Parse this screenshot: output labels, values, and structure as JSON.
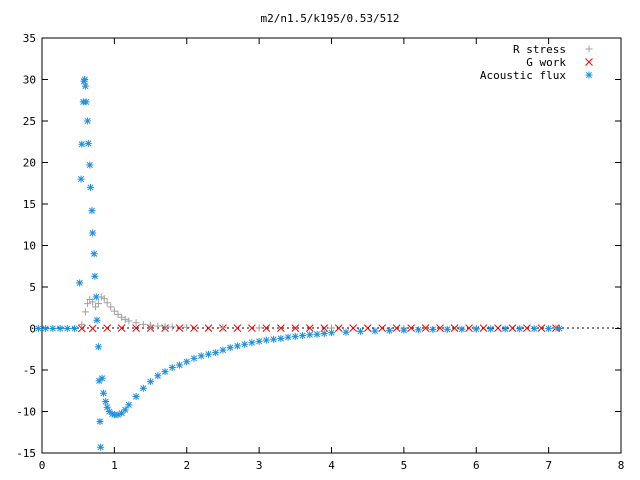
{
  "chart_data": {
    "type": "scatter",
    "title": "m2/n1.5/k195/0.53/512",
    "xlabel": "",
    "ylabel": "",
    "xlim": [
      0,
      8
    ],
    "ylim": [
      -15,
      35
    ],
    "xticks": [
      "0",
      "1",
      "2",
      "3",
      "4",
      "5",
      "6",
      "7",
      "8"
    ],
    "yticks": [
      "-15",
      "-10",
      "-5",
      "0",
      "5",
      "10",
      "15",
      "20",
      "25",
      "30",
      "35"
    ],
    "grid": false,
    "legend_position": "top-right",
    "series": [
      {
        "name": "R stress",
        "marker": "plus",
        "color": "#a0a0a0",
        "points": [
          [
            0.55,
            0.5
          ],
          [
            0.6,
            2.0
          ],
          [
            0.63,
            3.0
          ],
          [
            0.66,
            3.5
          ],
          [
            0.7,
            3.2
          ],
          [
            0.74,
            2.6
          ],
          [
            0.78,
            3.0
          ],
          [
            0.82,
            3.8
          ],
          [
            0.86,
            3.6
          ],
          [
            0.9,
            3.1
          ],
          [
            0.95,
            2.6
          ],
          [
            1.0,
            2.1
          ],
          [
            1.05,
            1.7
          ],
          [
            1.1,
            1.35
          ],
          [
            1.15,
            1.1
          ],
          [
            1.2,
            0.9
          ],
          [
            1.3,
            0.7
          ],
          [
            1.4,
            0.5
          ],
          [
            1.5,
            0.4
          ],
          [
            1.6,
            0.3
          ],
          [
            1.7,
            0.25
          ],
          [
            1.8,
            0.2
          ],
          [
            2.0,
            0.15
          ],
          [
            2.5,
            0.1
          ],
          [
            3.0,
            0.08
          ],
          [
            4.0,
            0.05
          ],
          [
            5.0,
            0.03
          ],
          [
            6.0,
            0.02
          ],
          [
            7.1,
            0.02
          ]
        ]
      },
      {
        "name": "G work",
        "marker": "cross",
        "color": "#ff0000",
        "points": [
          [
            0.55,
            0.0
          ],
          [
            0.7,
            0.0
          ],
          [
            0.9,
            0.05
          ],
          [
            1.1,
            0.05
          ],
          [
            1.3,
            0.05
          ],
          [
            1.5,
            0.05
          ],
          [
            1.7,
            0.05
          ],
          [
            1.9,
            0.05
          ],
          [
            2.1,
            0.05
          ],
          [
            2.3,
            0.05
          ],
          [
            2.5,
            0.05
          ],
          [
            2.7,
            0.05
          ],
          [
            2.9,
            0.05
          ],
          [
            3.1,
            0.05
          ],
          [
            3.3,
            0.05
          ],
          [
            3.5,
            0.05
          ],
          [
            3.7,
            0.05
          ],
          [
            3.9,
            0.05
          ],
          [
            4.1,
            0.05
          ],
          [
            4.3,
            0.05
          ],
          [
            4.5,
            0.05
          ],
          [
            4.7,
            0.05
          ],
          [
            4.9,
            0.05
          ],
          [
            5.1,
            0.05
          ],
          [
            5.3,
            0.05
          ],
          [
            5.5,
            0.05
          ],
          [
            5.7,
            0.05
          ],
          [
            5.9,
            0.05
          ],
          [
            6.1,
            0.05
          ],
          [
            6.3,
            0.05
          ],
          [
            6.5,
            0.05
          ],
          [
            6.7,
            0.05
          ],
          [
            6.9,
            0.05
          ],
          [
            7.1,
            0.05
          ]
        ]
      },
      {
        "name": "Acoustic flux",
        "marker": "star",
        "color": "#1e90e0",
        "points": [
          [
            -0.05,
            0.0
          ],
          [
            0.05,
            0.0
          ],
          [
            0.15,
            0.0
          ],
          [
            0.25,
            0.0
          ],
          [
            0.35,
            0.0
          ],
          [
            0.45,
            0.0
          ],
          [
            0.52,
            5.5
          ],
          [
            0.54,
            18.0
          ],
          [
            0.55,
            22.2
          ],
          [
            0.57,
            27.3
          ],
          [
            0.58,
            29.8
          ],
          [
            0.59,
            30.0
          ],
          [
            0.6,
            29.2
          ],
          [
            0.61,
            27.3
          ],
          [
            0.63,
            25.0
          ],
          [
            0.64,
            22.3
          ],
          [
            0.66,
            19.7
          ],
          [
            0.67,
            17.0
          ],
          [
            0.69,
            14.2
          ],
          [
            0.7,
            11.5
          ],
          [
            0.72,
            9.0
          ],
          [
            0.73,
            6.3
          ],
          [
            0.75,
            3.8
          ],
          [
            0.76,
            1.0
          ],
          [
            0.78,
            -2.2
          ],
          [
            0.79,
            -6.3
          ],
          [
            0.8,
            -11.2
          ],
          [
            0.81,
            -14.3
          ],
          [
            0.83,
            -6.0
          ],
          [
            0.85,
            -7.8
          ],
          [
            0.88,
            -8.8
          ],
          [
            0.9,
            -9.5
          ],
          [
            0.93,
            -10.0
          ],
          [
            0.97,
            -10.3
          ],
          [
            1.0,
            -10.4
          ],
          [
            1.05,
            -10.4
          ],
          [
            1.1,
            -10.2
          ],
          [
            1.15,
            -9.8
          ],
          [
            1.2,
            -9.2
          ],
          [
            1.3,
            -8.2
          ],
          [
            1.4,
            -7.2
          ],
          [
            1.5,
            -6.4
          ],
          [
            1.6,
            -5.7
          ],
          [
            1.7,
            -5.2
          ],
          [
            1.8,
            -4.7
          ],
          [
            1.9,
            -4.4
          ],
          [
            2.0,
            -4.0
          ],
          [
            2.1,
            -3.6
          ],
          [
            2.2,
            -3.3
          ],
          [
            2.3,
            -3.1
          ],
          [
            2.4,
            -2.9
          ],
          [
            2.5,
            -2.6
          ],
          [
            2.6,
            -2.3
          ],
          [
            2.7,
            -2.1
          ],
          [
            2.8,
            -1.9
          ],
          [
            2.9,
            -1.7
          ],
          [
            3.0,
            -1.55
          ],
          [
            3.1,
            -1.4
          ],
          [
            3.2,
            -1.3
          ],
          [
            3.3,
            -1.2
          ],
          [
            3.4,
            -1.05
          ],
          [
            3.5,
            -0.95
          ],
          [
            3.6,
            -0.85
          ],
          [
            3.7,
            -0.75
          ],
          [
            3.8,
            -0.7
          ],
          [
            3.9,
            -0.6
          ],
          [
            4.0,
            -0.5
          ],
          [
            4.2,
            -0.45
          ],
          [
            4.4,
            -0.35
          ],
          [
            4.6,
            -0.3
          ],
          [
            4.8,
            -0.25
          ],
          [
            5.0,
            -0.2
          ],
          [
            5.2,
            -0.15
          ],
          [
            5.4,
            -0.12
          ],
          [
            5.6,
            -0.1
          ],
          [
            5.8,
            -0.08
          ],
          [
            6.0,
            -0.06
          ],
          [
            6.2,
            -0.05
          ],
          [
            6.4,
            -0.04
          ],
          [
            6.6,
            -0.03
          ],
          [
            6.8,
            -0.02
          ],
          [
            7.0,
            -0.01
          ],
          [
            7.15,
            0.0
          ]
        ]
      }
    ]
  }
}
